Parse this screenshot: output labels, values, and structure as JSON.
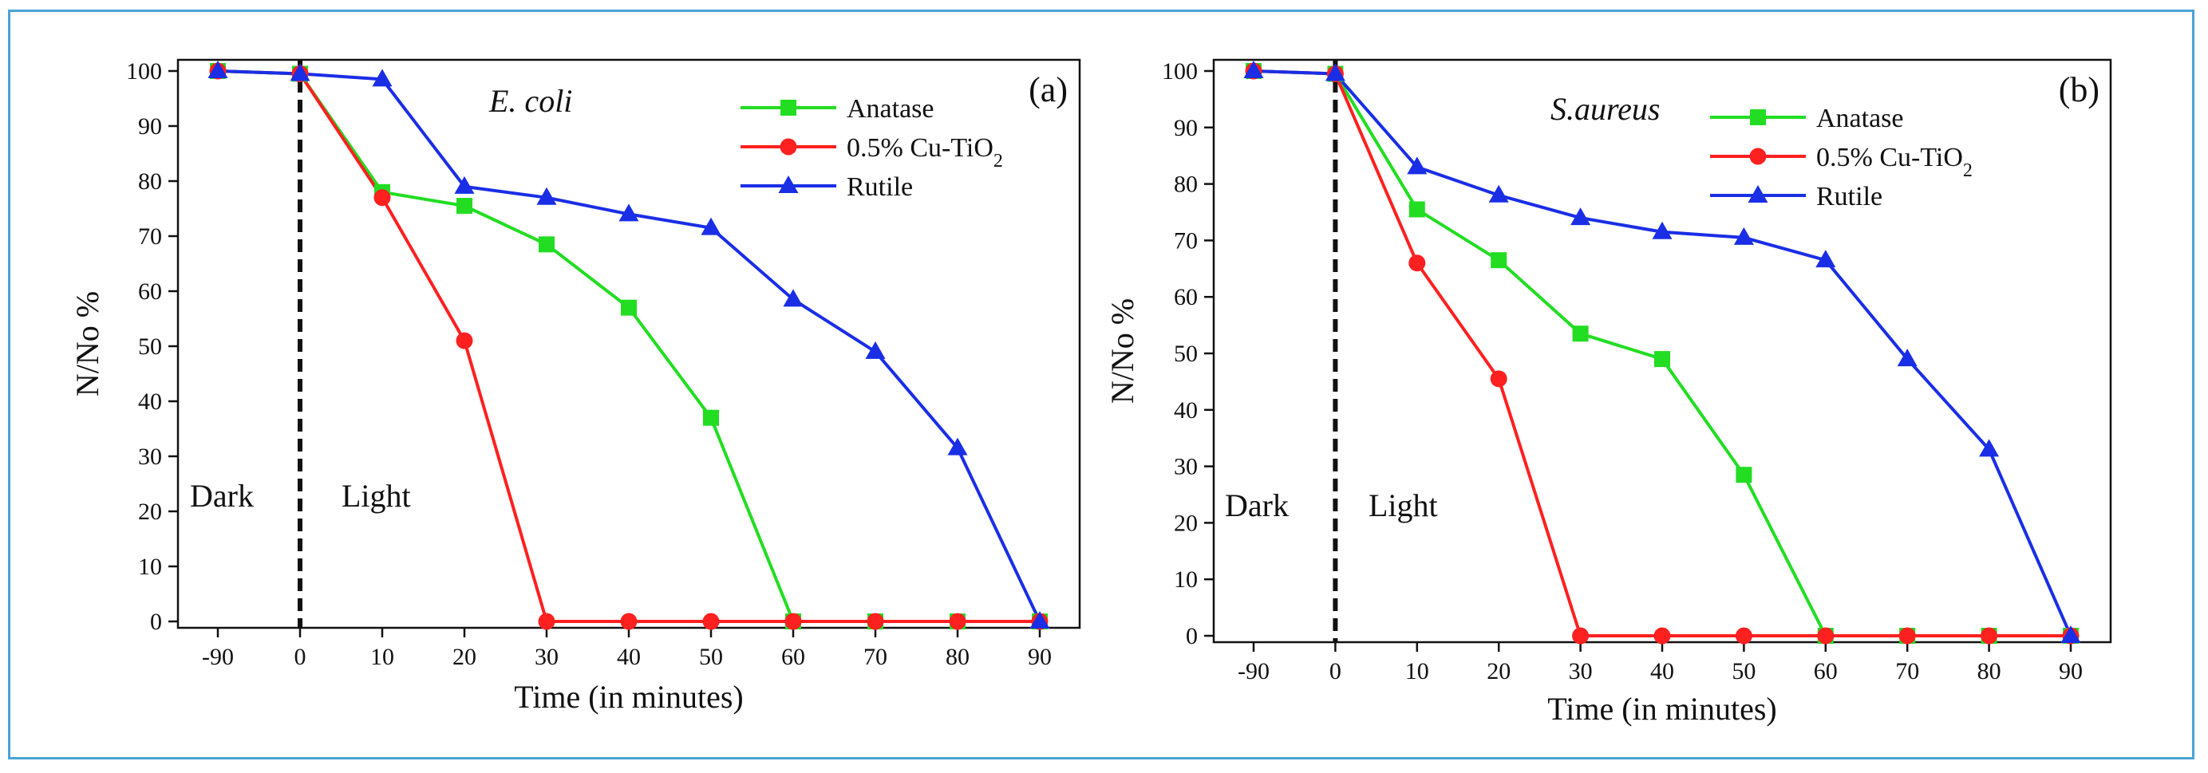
{
  "chart_data": [
    {
      "type": "line",
      "panel_label": "(a)",
      "organism": "E. coli",
      "xlabel": "Time (in minutes)",
      "ylabel": "N/No %",
      "categories": [
        "-90",
        "0",
        "10",
        "20",
        "30",
        "40",
        "50",
        "60",
        "70",
        "80",
        "90"
      ],
      "ylim": [
        0,
        100
      ],
      "yticks": [
        "0",
        "10",
        "20",
        "30",
        "40",
        "50",
        "60",
        "70",
        "80",
        "90",
        "100"
      ],
      "divider_after_category": "0",
      "regions": {
        "left": "Dark",
        "right": "Light"
      },
      "series": [
        {
          "name": "Anatase",
          "marker": "square",
          "color": "#22dd22",
          "values": [
            100,
            99.5,
            78,
            75.5,
            68.5,
            57,
            37,
            0,
            0,
            0,
            0
          ]
        },
        {
          "name": "0.5% Cu-TiO",
          "subscript": "2",
          "marker": "circle",
          "color": "#ff2020",
          "values": [
            100,
            99.5,
            77,
            51,
            0,
            0,
            0,
            0,
            0,
            0,
            0
          ]
        },
        {
          "name": "Rutile",
          "marker": "triangle",
          "color": "#1a2ee6",
          "values": [
            100,
            99.5,
            98.5,
            79,
            77,
            74,
            71.5,
            58.5,
            49,
            31.5,
            0
          ]
        }
      ]
    },
    {
      "type": "line",
      "panel_label": "(b)",
      "organism": "S.aureus",
      "xlabel": "Time (in minutes)",
      "ylabel": "N/No %",
      "categories": [
        "-90",
        "0",
        "10",
        "20",
        "30",
        "40",
        "50",
        "60",
        "70",
        "80",
        "90"
      ],
      "ylim": [
        0,
        100
      ],
      "yticks": [
        "0",
        "10",
        "20",
        "30",
        "40",
        "50",
        "60",
        "70",
        "80",
        "90",
        "100"
      ],
      "divider_after_category": "0",
      "regions": {
        "left": "Dark",
        "right": "Light"
      },
      "series": [
        {
          "name": "Anatase",
          "marker": "square",
          "color": "#22dd22",
          "values": [
            100,
            99.5,
            75.5,
            66.5,
            53.5,
            49,
            28.5,
            0,
            0,
            0,
            0
          ]
        },
        {
          "name": "0.5% Cu-TiO",
          "subscript": "2",
          "marker": "circle",
          "color": "#ff2020",
          "values": [
            100,
            99.5,
            66,
            45.5,
            0,
            0,
            0,
            0,
            0,
            0,
            0
          ]
        },
        {
          "name": "Rutile",
          "marker": "triangle",
          "color": "#1a2ee6",
          "values": [
            100,
            99.5,
            83,
            78,
            74,
            71.5,
            70.5,
            66.5,
            49,
            33,
            0
          ]
        }
      ]
    }
  ]
}
